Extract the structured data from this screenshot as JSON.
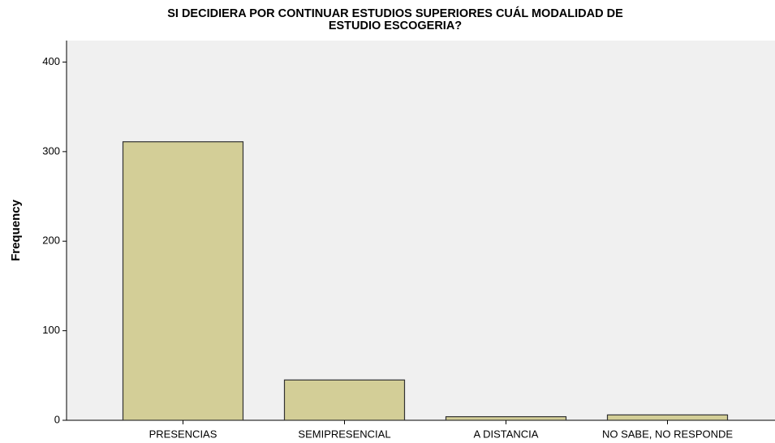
{
  "chart_data": {
    "type": "bar",
    "title": [
      "SI  DECIDIERA POR CONTINUAR ESTUDIOS SUPERIORES CUÁL MODALIDAD DE",
      "ESTUDIO ESCOGERIA?"
    ],
    "y_label": "Frequency",
    "categories": [
      "PRESENCIAS",
      "SEMIPRESENCIAL",
      "A DISTANCIA",
      "NO SABE, NO RESPONDE"
    ],
    "values": [
      311,
      45,
      4,
      6
    ],
    "color": "#d3ce97",
    "ylim": [
      0,
      424
    ],
    "yticks": [
      0,
      100,
      200,
      300,
      400
    ],
    "grid": false
  }
}
